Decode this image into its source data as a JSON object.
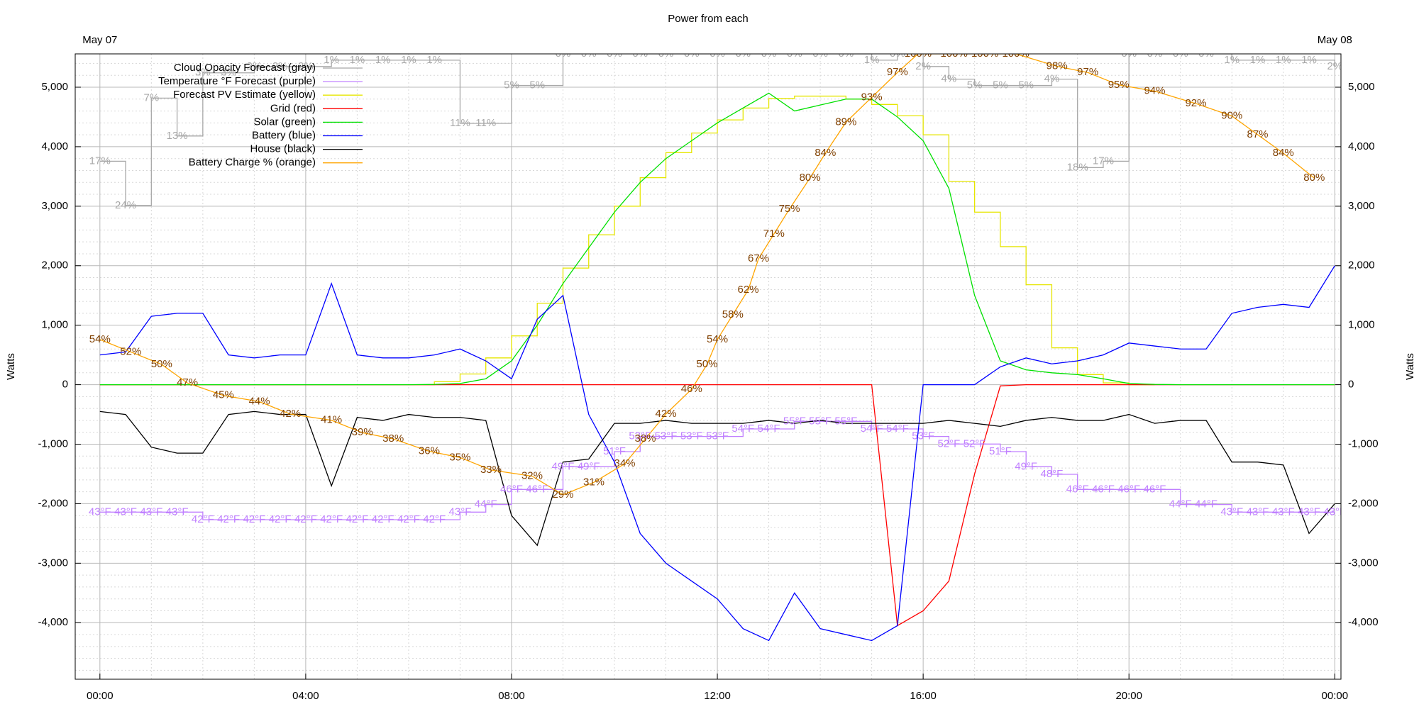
{
  "chart_data": {
    "type": "line",
    "title": "Power from each",
    "ylabel": "Watts",
    "xlim": [
      -0.48,
      24.12
    ],
    "xticks": [
      {
        "value": 0,
        "label": "00:00"
      },
      {
        "value": 4,
        "label": "04:00"
      },
      {
        "value": 8,
        "label": "08:00"
      },
      {
        "value": 12,
        "label": "12:00"
      },
      {
        "value": 16,
        "label": "16:00"
      },
      {
        "value": 20,
        "label": "20:00"
      },
      {
        "value": 24,
        "label": "00:00"
      }
    ],
    "date_labels": [
      {
        "value": 0,
        "label": "May 07"
      },
      {
        "value": 24,
        "label": "May 08"
      }
    ],
    "ylim": [
      -4950,
      5560
    ],
    "yticks": [
      {
        "value": -4000,
        "label": "-4,000"
      },
      {
        "value": -3000,
        "label": "-3,000"
      },
      {
        "value": -2000,
        "label": "-2,000"
      },
      {
        "value": -1000,
        "label": "-1,000"
      },
      0,
      {
        "value": 1000,
        "label": "1,000"
      },
      {
        "value": 2000,
        "label": "2,000"
      },
      {
        "value": 3000,
        "label": "3,000"
      },
      {
        "value": 4000,
        "label": "4,000"
      },
      {
        "value": 5000,
        "label": "5,000"
      }
    ],
    "grid": true,
    "legend": "upper left",
    "x": [
      0,
      0.5,
      1,
      1.5,
      2,
      2.5,
      3,
      3.5,
      4,
      4.5,
      5,
      5.5,
      6,
      6.5,
      7,
      7.5,
      8,
      8.5,
      9,
      9.5,
      10,
      10.5,
      11,
      11.5,
      12,
      12.5,
      13,
      13.5,
      14,
      14.5,
      15,
      15.5,
      16,
      16.5,
      17,
      17.5,
      18,
      18.5,
      19,
      19.5,
      20,
      20.5,
      21,
      21.5,
      22,
      22.5,
      23,
      23.5,
      24
    ],
    "series": [
      {
        "name": "Cloud Opacity Forecast (gray)",
        "color": "#a8a8a8",
        "step": true,
        "ylim": [
          99,
          0
        ],
        "values": [
          17,
          24,
          7,
          13,
          3,
          3,
          2,
          2,
          2,
          1,
          1,
          1,
          1,
          1,
          11,
          11,
          5,
          5,
          0,
          0,
          0,
          0,
          0,
          0,
          0,
          0,
          0,
          0,
          0,
          0,
          1,
          0,
          2,
          4,
          5,
          5,
          5,
          4,
          18,
          17,
          0,
          0,
          0,
          0,
          1,
          1,
          1,
          1,
          2
        ],
        "value_labels": [
          "17%",
          "24%",
          "7%",
          "13%",
          "3%",
          "3%",
          "2%",
          "2%",
          "2%",
          "1%",
          "1%",
          "1%",
          "1%",
          "1%",
          "11%",
          "11%",
          "5%",
          "5%",
          "0%",
          "0%",
          "0%",
          "0%",
          "0%",
          "0%",
          "0%",
          "0%",
          "0%",
          "0%",
          "0%",
          "0%",
          "1%",
          "0%",
          "2%",
          "4%",
          "5%",
          "5%",
          "5%",
          "4%",
          "18%",
          "17%",
          "0%",
          "0%",
          "0%",
          "0%",
          "1%",
          "1%",
          "1%",
          "1%",
          "2%"
        ]
      },
      {
        "name": "Temperature °F Forecast (purple)",
        "color": "#c080ff",
        "step": true,
        "ylim": [
          20.9,
          103.6
        ],
        "values": [
          43,
          43,
          43,
          43,
          42,
          42,
          42,
          42,
          42,
          42,
          42,
          42,
          42,
          42,
          43,
          44,
          46,
          46,
          49,
          49,
          51,
          53,
          53,
          53,
          53,
          54,
          54,
          55,
          55,
          55,
          54,
          54,
          53,
          52,
          52,
          51,
          49,
          48,
          46,
          46,
          46,
          46,
          44,
          44,
          43,
          43,
          43,
          43,
          43
        ],
        "value_labels": [
          "43°F",
          "43°F",
          "43°F",
          "43°F",
          "42°F",
          "42°F",
          "42°F",
          "42°F",
          "42°F",
          "42°F",
          "42°F",
          "42°F",
          "42°F",
          "42°F",
          "43°F",
          "44°F",
          "46°F",
          "46°F",
          "49°F",
          "49°F",
          "51°F",
          "53°F",
          "53°F",
          "53°F",
          "53°F",
          "54°F",
          "54°F",
          "55°F",
          "55°F",
          "55°F",
          "54°F",
          "54°F",
          "53°F",
          "52°F",
          "52°F",
          "51°F",
          "49°F",
          "48°F",
          "46°F",
          "46°F",
          "46°F",
          "46°F",
          "44°F",
          "44°F",
          "43°F",
          "43°F",
          "43°F",
          "43°F",
          "43°F"
        ]
      },
      {
        "name": "Forecast PV Estimate (yellow)",
        "color": "#e6e600",
        "step": true,
        "x": [
          0,
          0.5,
          1,
          1.5,
          2,
          2.5,
          3,
          3.5,
          4,
          4.5,
          5,
          5.5,
          6,
          6.5,
          7,
          7.5,
          8,
          8.5,
          9,
          9.5,
          10,
          10.5,
          11,
          11.5,
          12,
          12.5,
          13,
          13.5,
          14,
          14.5,
          15,
          15.5,
          16,
          16.5,
          17,
          17.5,
          18,
          18.5,
          19,
          19.5,
          20,
          20.5
        ],
        "values": [
          0,
          0,
          0,
          0,
          0,
          0,
          0,
          0,
          0,
          0,
          0,
          0,
          0,
          50,
          180,
          450,
          820,
          1370,
          1960,
          2520,
          3000,
          3480,
          3900,
          4230,
          4450,
          4650,
          4810,
          4850,
          4850,
          4800,
          4710,
          4520,
          4200,
          3420,
          2900,
          2320,
          1680,
          620,
          170,
          30,
          0,
          0
        ]
      },
      {
        "name": "Grid (red)",
        "color": "#ff0000",
        "values": [
          0,
          0,
          0,
          0,
          0,
          0,
          0,
          0,
          0,
          0,
          0,
          0,
          0,
          0,
          0,
          0,
          0,
          0,
          0,
          0,
          0,
          0,
          0,
          0,
          0,
          0,
          0,
          0,
          0,
          0,
          0,
          -4050,
          -3800,
          -3300,
          -1500,
          -20,
          0,
          0,
          0,
          0,
          0,
          0,
          0,
          0,
          0,
          0,
          0,
          0,
          0
        ]
      },
      {
        "name": "Solar (green)",
        "color": "#00e000",
        "values": [
          0,
          0,
          0,
          0,
          0,
          0,
          0,
          0,
          0,
          0,
          0,
          0,
          0,
          5,
          20,
          100,
          400,
          1000,
          1700,
          2300,
          2900,
          3400,
          3800,
          4100,
          4400,
          4650,
          4900,
          4600,
          4700,
          4800,
          4800,
          4500,
          4100,
          3300,
          1500,
          400,
          250,
          200,
          170,
          100,
          20,
          5,
          0,
          0,
          0,
          0,
          0,
          0,
          0
        ]
      },
      {
        "name": "Battery (blue)",
        "color": "#0000ff",
        "values": [
          500,
          550,
          1150,
          1200,
          1200,
          500,
          450,
          500,
          500,
          1700,
          500,
          450,
          450,
          500,
          600,
          400,
          100,
          1100,
          1500,
          -500,
          -1300,
          -2500,
          -3000,
          -3300,
          -3600,
          -4100,
          -4300,
          -3500,
          -4100,
          -4200,
          -4300,
          -4050,
          0,
          0,
          0,
          300,
          450,
          350,
          400,
          500,
          700,
          650,
          600,
          600,
          1200,
          1300,
          1350,
          1300,
          2000
        ]
      },
      {
        "name": "House (black)",
        "color": "#000000",
        "values": [
          -450,
          -500,
          -1050,
          -1150,
          -1150,
          -500,
          -450,
          -500,
          -500,
          -1700,
          -550,
          -600,
          -500,
          -550,
          -550,
          -600,
          -2200,
          -2700,
          -1300,
          -1250,
          -650,
          -650,
          -600,
          -650,
          -650,
          -650,
          -600,
          -650,
          -600,
          -650,
          -650,
          -650,
          -650,
          -600,
          -650,
          -700,
          -600,
          -550,
          -600,
          -600,
          -500,
          -650,
          -600,
          -600,
          -1300,
          -1300,
          -1350,
          -2500,
          -2000
        ]
      },
      {
        "name": "Battery Charge % (orange)",
        "color": "#ffa500",
        "label_color": "#804000",
        "ylim": [
          -0.7,
          100
        ],
        "x": [
          0,
          0.6,
          1.2,
          1.7,
          2.4,
          3.1,
          3.7,
          4.5,
          5.1,
          5.7,
          6.4,
          7.0,
          7.6,
          8.4,
          9.0,
          9.6,
          10.2,
          10.6,
          11.0,
          11.5,
          11.8,
          12.0,
          12.3,
          12.6,
          12.8,
          13.1,
          13.4,
          13.8,
          14.1,
          14.5,
          15.0,
          15.5,
          15.9,
          16.6,
          17.2,
          17.8,
          18.6,
          19.2,
          19.8,
          20.5,
          21.3,
          22.0,
          22.5,
          23.0,
          23.6
        ],
        "values": [
          54,
          52,
          50,
          47,
          45,
          44,
          42,
          41,
          39,
          38,
          36,
          35,
          33,
          32,
          29,
          31,
          34,
          38,
          42,
          46,
          50,
          54,
          58,
          62,
          67,
          71,
          75,
          80,
          84,
          89,
          93,
          97,
          100,
          100,
          100,
          100,
          98,
          97,
          95,
          94,
          92,
          90,
          87,
          84,
          80
        ],
        "value_labels": [
          "54%",
          "52%",
          "50%",
          "47%",
          "45%",
          "44%",
          "42%",
          "41%",
          "39%",
          "38%",
          "36%",
          "35%",
          "33%",
          "32%",
          "29%",
          "31%",
          "34%",
          "38%",
          "42%",
          "46%",
          "50%",
          "54%",
          "58%",
          "62%",
          "67%",
          "71%",
          "75%",
          "80%",
          "84%",
          "89%",
          "93%",
          "97%",
          "100%",
          "100%",
          "100%",
          "100%",
          "98%",
          "97%",
          "95%",
          "94%",
          "92%",
          "90%",
          "87%",
          "84%",
          "80%"
        ]
      }
    ]
  }
}
